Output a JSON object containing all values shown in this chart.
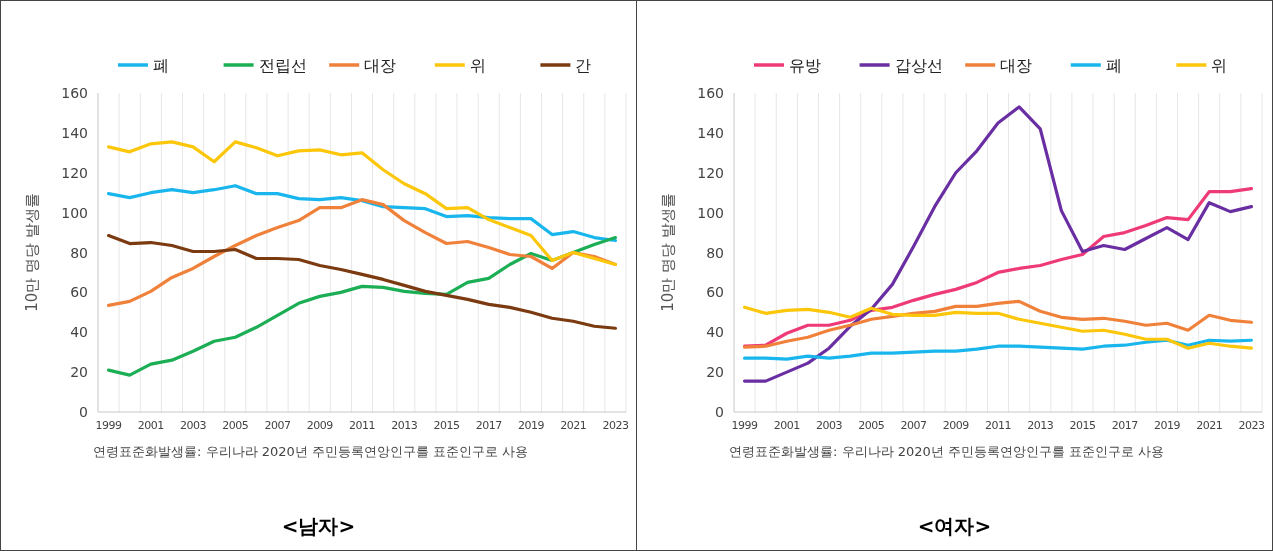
{
  "chart_data": [
    {
      "type": "line",
      "title": "<남자>",
      "ylabel": "10만 명당 발생률",
      "annotations": [
        "연령표준화발생률: 우리나라 2020년 주민등록연앙인구를 표준인구로 사용"
      ],
      "categories": [
        "1999",
        null,
        "2001",
        null,
        "2003",
        null,
        "2005",
        null,
        "2007",
        null,
        "2009",
        null,
        "2011",
        null,
        "2013",
        null,
        "2015",
        null,
        "2017",
        null,
        "2019",
        null,
        "2021",
        null,
        "2023"
      ],
      "ylim": [
        0,
        160
      ],
      "yticks": [
        0,
        20,
        40,
        60,
        80,
        100,
        120,
        140,
        160
      ],
      "grid": "x",
      "legend": "top",
      "marker": "none",
      "line_style": "solid",
      "series": [
        {
          "name": "폐",
          "color": "#19b6ee",
          "values": [
            109.5,
            107.5,
            110,
            111.5,
            110,
            111.5,
            113.5,
            109.5,
            109.5,
            107,
            106.5,
            107.5,
            106,
            103,
            102.5,
            102,
            98,
            98.5,
            97.5,
            97,
            97,
            89,
            90.5,
            87.5,
            86
          ]
        },
        {
          "name": "전립선",
          "color": "#1bae55",
          "values": [
            21,
            18.5,
            24,
            26,
            30.5,
            35.5,
            37.5,
            42.5,
            48.5,
            54.5,
            58,
            60,
            63,
            62.5,
            60.5,
            59.5,
            59,
            65,
            67,
            74,
            79.5,
            76,
            80,
            84,
            87.5
          ]
        },
        {
          "name": "대장",
          "color": "#f0813a",
          "values": [
            53.5,
            55.5,
            60.5,
            67.5,
            72,
            78,
            83.5,
            88.5,
            92.5,
            96,
            102.5,
            102.5,
            106.5,
            104,
            96,
            90,
            84.5,
            85.5,
            82.5,
            79,
            78,
            72,
            80,
            78,
            74
          ]
        },
        {
          "name": "위",
          "color": "#fcc60a",
          "values": [
            133,
            130.5,
            134.5,
            135.5,
            133,
            125.5,
            135.5,
            132.5,
            128.5,
            131,
            131.5,
            129,
            130,
            121.5,
            114.5,
            109.5,
            102,
            102.5,
            96.5,
            92.5,
            88.5,
            76,
            80,
            77,
            74
          ]
        },
        {
          "name": "간",
          "color": "#7b3a10",
          "values": [
            88.5,
            84.5,
            85,
            83.5,
            80.5,
            80.5,
            81.5,
            77,
            77,
            76.5,
            73.5,
            71.5,
            69,
            66.5,
            63.5,
            60.5,
            58.5,
            56.5,
            54,
            52.5,
            50,
            47,
            45.5,
            43,
            42
          ]
        }
      ]
    },
    {
      "type": "line",
      "title": "<여자>",
      "ylabel": "10만 명당 발생률",
      "annotations": [
        "연령표준화발생률: 우리나라 2020년 주민등록연앙인구를 표준인구로 사용"
      ],
      "categories": [
        "1999",
        null,
        "2001",
        null,
        "2003",
        null,
        "2005",
        null,
        "2007",
        null,
        "2009",
        null,
        "2011",
        null,
        "2013",
        null,
        "2015",
        null,
        "2017",
        null,
        "2019",
        null,
        "2021",
        null,
        "2023"
      ],
      "ylim": [
        0,
        160
      ],
      "yticks": [
        0,
        20,
        40,
        60,
        80,
        100,
        120,
        140,
        160
      ],
      "grid": "x",
      "legend": "top",
      "marker": "none",
      "line_style": "solid",
      "series": [
        {
          "name": "유방",
          "color": "#ee3a78",
          "values": [
            33,
            33.5,
            39.5,
            43.5,
            43.5,
            46,
            51,
            52.5,
            56,
            59,
            61.5,
            65,
            70,
            72,
            73.5,
            76.5,
            79,
            88,
            90,
            93.5,
            97.5,
            96.5,
            110.5,
            110.5,
            112
          ]
        },
        {
          "name": "갑상선",
          "color": "#6a2ea3",
          "values": [
            15.5,
            15.5,
            20,
            24.5,
            32,
            43,
            51.5,
            64,
            83,
            103,
            120,
            131,
            145,
            153,
            142,
            101,
            80.5,
            83.5,
            81.5,
            87,
            92.5,
            86.5,
            105,
            100.5,
            103
          ]
        },
        {
          "name": "대장",
          "color": "#f0813a",
          "values": [
            32.5,
            33,
            35.5,
            37.5,
            41,
            43.5,
            46.5,
            48,
            49.5,
            50.5,
            53,
            53,
            54.5,
            55.5,
            50.5,
            47.5,
            46.5,
            47,
            45.5,
            43.5,
            44.5,
            41,
            48.5,
            46,
            45
          ]
        },
        {
          "name": "폐",
          "color": "#19b6ee",
          "values": [
            27,
            27,
            26.5,
            28,
            27,
            28,
            29.5,
            29.5,
            30,
            30.5,
            30.5,
            31.5,
            33,
            33,
            32.5,
            32,
            31.5,
            33,
            33.5,
            35,
            36,
            33.5,
            36,
            35.5,
            36
          ]
        },
        {
          "name": "위",
          "color": "#fcc60a",
          "values": [
            52.5,
            49.5,
            51,
            51.5,
            50,
            47.5,
            52,
            49,
            48.5,
            48.5,
            50,
            49.5,
            49.5,
            46.5,
            44.5,
            42.5,
            40.5,
            41,
            39,
            36.5,
            36.5,
            32,
            34.5,
            33,
            32
          ]
        }
      ]
    }
  ]
}
